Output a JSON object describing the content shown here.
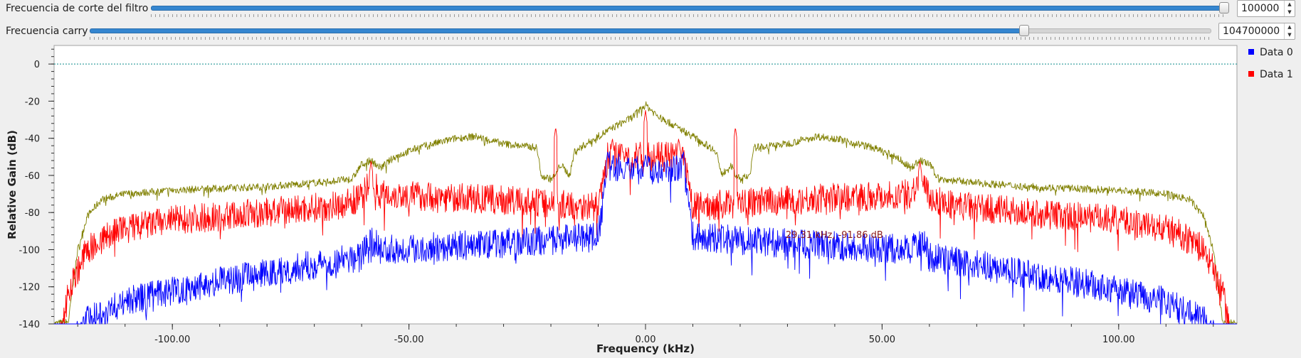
{
  "controls": {
    "cutoff": {
      "label": "Frecuencia de corte del filtro",
      "value": "100000",
      "fraction": 0.999
    },
    "carry": {
      "label": "Frecuencia carry",
      "value": "104700000",
      "fraction": 0.833
    }
  },
  "chart_data": {
    "type": "line",
    "xlabel": "Frequency (kHz)",
    "ylabel": "Relative Gain (dB)",
    "xlim": [
      -125,
      125
    ],
    "ylim": [
      -140,
      10
    ],
    "xticks": [
      -100,
      -50,
      0,
      50,
      100
    ],
    "xtick_labels": [
      "-100.00",
      "-50.00",
      "0.00",
      "50.00",
      "100.00"
    ],
    "yticks": [
      0,
      -20,
      -40,
      -60,
      -80,
      -100,
      -120,
      -140
    ],
    "ytick_labels": [
      "0",
      "-20",
      "-40",
      "-60",
      "-80",
      "-100",
      "-120",
      "-140"
    ],
    "threshold_db": 0,
    "cursor_readout": "29.31 kHz, -91.86 dB",
    "legend_position": "right",
    "series": [
      {
        "name": "Data 0",
        "color": "#0000ff",
        "noise_db": 8,
        "envelope": [
          [
            -124,
            -160
          ],
          [
            -118,
            -138
          ],
          [
            -110,
            -128
          ],
          [
            -100,
            -122
          ],
          [
            -90,
            -117
          ],
          [
            -80,
            -113
          ],
          [
            -70,
            -108
          ],
          [
            -60,
            -104
          ],
          [
            -59,
            -95
          ],
          [
            -57,
            -97
          ],
          [
            -56,
            -100
          ],
          [
            -40,
            -98
          ],
          [
            -20,
            -95
          ],
          [
            -10,
            -93
          ],
          [
            -9,
            -75
          ],
          [
            -8,
            -55
          ],
          [
            -5,
            -56
          ],
          [
            0,
            -57
          ],
          [
            5,
            -56
          ],
          [
            8,
            -55
          ],
          [
            9,
            -75
          ],
          [
            10,
            -93
          ],
          [
            20,
            -95
          ],
          [
            40,
            -98
          ],
          [
            56,
            -100
          ],
          [
            57,
            -97
          ],
          [
            59,
            -95
          ],
          [
            60,
            -104
          ],
          [
            70,
            -108
          ],
          [
            80,
            -113
          ],
          [
            90,
            -117
          ],
          [
            100,
            -122
          ],
          [
            110,
            -128
          ],
          [
            118,
            -138
          ],
          [
            124,
            -160
          ]
        ],
        "spikes": [
          [
            -8,
            -47
          ],
          [
            -4,
            -52
          ],
          [
            0,
            -49
          ],
          [
            4,
            -52
          ],
          [
            8,
            -47
          ]
        ]
      },
      {
        "name": "Data 1",
        "color": "#ff0000",
        "noise_db": 8,
        "envelope": [
          [
            -125,
            -170
          ],
          [
            -122,
            -122
          ],
          [
            -118,
            -100
          ],
          [
            -112,
            -90
          ],
          [
            -100,
            -84
          ],
          [
            -80,
            -80
          ],
          [
            -65,
            -76
          ],
          [
            -60,
            -72
          ],
          [
            -58,
            -62
          ],
          [
            -56,
            -70
          ],
          [
            -40,
            -72
          ],
          [
            -20,
            -75
          ],
          [
            -10,
            -77
          ],
          [
            -9,
            -65
          ],
          [
            -8,
            -50
          ],
          [
            0,
            -50
          ],
          [
            8,
            -50
          ],
          [
            9,
            -65
          ],
          [
            10,
            -77
          ],
          [
            20,
            -75
          ],
          [
            40,
            -72
          ],
          [
            56,
            -70
          ],
          [
            58,
            -62
          ],
          [
            60,
            -72
          ],
          [
            65,
            -76
          ],
          [
            80,
            -80
          ],
          [
            100,
            -84
          ],
          [
            112,
            -90
          ],
          [
            118,
            -100
          ],
          [
            122,
            -122
          ],
          [
            125,
            -170
          ]
        ],
        "spikes": [
          [
            -19,
            -34
          ],
          [
            19,
            -34
          ],
          [
            -58,
            -52
          ],
          [
            58,
            -52
          ],
          [
            0,
            -25
          ],
          [
            -7,
            -40
          ],
          [
            7,
            -40
          ]
        ]
      },
      {
        "name": "",
        "color": "#808000",
        "noise_db": 2,
        "envelope": [
          [
            -125,
            -140
          ],
          [
            -122,
            -139
          ],
          [
            -120,
            -100
          ],
          [
            -118,
            -82
          ],
          [
            -115,
            -73
          ],
          [
            -110,
            -70
          ],
          [
            -100,
            -68
          ],
          [
            -90,
            -67
          ],
          [
            -80,
            -66
          ],
          [
            -70,
            -64
          ],
          [
            -62,
            -62
          ],
          [
            -60,
            -54
          ],
          [
            -58,
            -52
          ],
          [
            -56,
            -56
          ],
          [
            -53,
            -50
          ],
          [
            -48,
            -45
          ],
          [
            -40,
            -40
          ],
          [
            -36,
            -39
          ],
          [
            -30,
            -43
          ],
          [
            -23,
            -45
          ],
          [
            -22,
            -60
          ],
          [
            -20,
            -62
          ],
          [
            -19,
            -60
          ],
          [
            -18,
            -54
          ],
          [
            -16,
            -60
          ],
          [
            -15,
            -47
          ],
          [
            -10,
            -39
          ],
          [
            -6,
            -33
          ],
          [
            -3,
            -29
          ],
          [
            0,
            -22
          ],
          [
            3,
            -29
          ],
          [
            6,
            -33
          ],
          [
            10,
            -39
          ],
          [
            15,
            -47
          ],
          [
            16,
            -60
          ],
          [
            18,
            -54
          ],
          [
            19,
            -60
          ],
          [
            20,
            -62
          ],
          [
            22,
            -60
          ],
          [
            23,
            -45
          ],
          [
            30,
            -43
          ],
          [
            36,
            -39
          ],
          [
            40,
            -40
          ],
          [
            48,
            -45
          ],
          [
            53,
            -50
          ],
          [
            56,
            -56
          ],
          [
            58,
            -52
          ],
          [
            60,
            -54
          ],
          [
            62,
            -62
          ],
          [
            70,
            -64
          ],
          [
            80,
            -66
          ],
          [
            90,
            -67
          ],
          [
            100,
            -68
          ],
          [
            110,
            -70
          ],
          [
            115,
            -73
          ],
          [
            118,
            -82
          ],
          [
            120,
            -100
          ],
          [
            122,
            -139
          ],
          [
            125,
            -140
          ]
        ],
        "spikes": []
      }
    ]
  }
}
